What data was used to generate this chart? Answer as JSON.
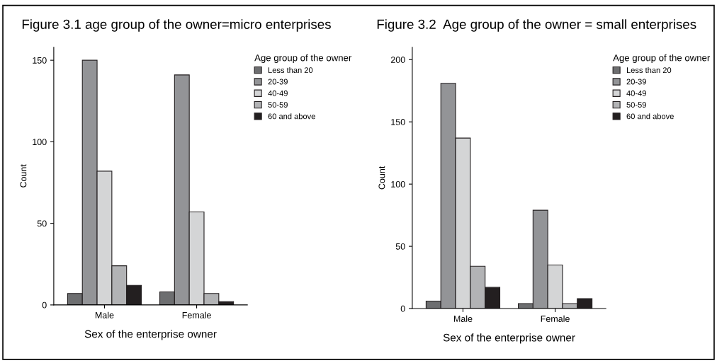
{
  "chart_data": [
    {
      "type": "bar",
      "title": "Figure 3.1 age group of the owner=micro enterprises",
      "xlabel": "Sex of the enterprise owner",
      "ylabel": "Count",
      "legend_title": "Age group of the owner",
      "legend": "top right",
      "grid": false,
      "categories": [
        "Male",
        "Female"
      ],
      "ylim": [
        0,
        158
      ],
      "yticks": [
        0,
        50,
        100,
        150
      ],
      "series": [
        {
          "name": "Less than 20",
          "color": "#6d6e70",
          "values": [
            7,
            8
          ]
        },
        {
          "name": "20-39",
          "color": "#939497",
          "values": [
            150,
            141
          ]
        },
        {
          "name": "40-49",
          "color": "#d4d5d6",
          "values": [
            82,
            57
          ]
        },
        {
          "name": "50-59",
          "color": "#b2b3b5",
          "values": [
            24,
            7
          ]
        },
        {
          "name": "60 and above",
          "color": "#231f20",
          "values": [
            12,
            2
          ]
        }
      ]
    },
    {
      "type": "bar",
      "title": "Figure 3.2  Age group of the owner = small enterprises",
      "xlabel": "Sex of the enterprise owner",
      "ylabel": "Count",
      "legend_title": "Age group of the owner",
      "legend": "top right",
      "grid": false,
      "categories": [
        "Male",
        "Female"
      ],
      "ylim": [
        0,
        210
      ],
      "yticks": [
        0,
        50,
        100,
        150,
        200
      ],
      "series": [
        {
          "name": "Less than 20",
          "color": "#6d6e70",
          "values": [
            6,
            4
          ]
        },
        {
          "name": "20-39",
          "color": "#939497",
          "values": [
            181,
            79
          ]
        },
        {
          "name": "40-49",
          "color": "#d4d5d6",
          "values": [
            137,
            35
          ]
        },
        {
          "name": "50-59",
          "color": "#b2b3b5",
          "values": [
            34,
            4
          ]
        },
        {
          "name": "60 and above",
          "color": "#231f20",
          "values": [
            17,
            8
          ]
        }
      ]
    }
  ]
}
